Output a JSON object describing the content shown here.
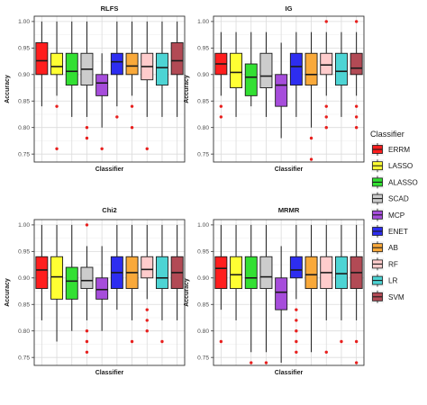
{
  "chart_data": [
    {
      "type": "box",
      "title": "RLFS",
      "xlabel": "Classifier",
      "ylabel": "Accuracy",
      "ylim": [
        0.735,
        1.01
      ],
      "yticks": [
        "0.75",
        "0.80",
        "0.85",
        "0.90",
        "0.95",
        "1.00"
      ],
      "grid": true,
      "boxes": [
        {
          "name": "ERRM",
          "whisker_low": 0.84,
          "q1": 0.9,
          "median": 0.926,
          "q3": 0.96,
          "whisker_high": 1.0,
          "outliers": []
        },
        {
          "name": "LASSO",
          "whisker_low": 0.86,
          "q1": 0.9,
          "median": 0.915,
          "q3": 0.94,
          "whisker_high": 1.0,
          "outliers": [
            0.84,
            0.76
          ]
        },
        {
          "name": "ALASSO",
          "whisker_low": 0.82,
          "q1": 0.88,
          "median": 0.906,
          "q3": 0.94,
          "whisker_high": 1.0,
          "outliers": []
        },
        {
          "name": "SCAD",
          "whisker_low": 0.82,
          "q1": 0.88,
          "median": 0.91,
          "q3": 0.94,
          "whisker_high": 1.0,
          "outliers": [
            0.78,
            0.8
          ]
        },
        {
          "name": "MCP",
          "whisker_low": 0.8,
          "q1": 0.86,
          "median": 0.884,
          "q3": 0.9,
          "whisker_high": 0.94,
          "outliers": [
            0.76
          ]
        },
        {
          "name": "ENET",
          "whisker_low": 0.84,
          "q1": 0.9,
          "median": 0.924,
          "q3": 0.94,
          "whisker_high": 1.0,
          "outliers": [
            0.82
          ]
        },
        {
          "name": "AB",
          "whisker_low": 0.86,
          "q1": 0.9,
          "median": 0.916,
          "q3": 0.94,
          "whisker_high": 1.0,
          "outliers": [
            0.84,
            0.8
          ]
        },
        {
          "name": "RF",
          "whisker_low": 0.82,
          "q1": 0.89,
          "median": 0.915,
          "q3": 0.94,
          "whisker_high": 1.0,
          "outliers": [
            0.76
          ]
        },
        {
          "name": "LR",
          "whisker_low": 0.82,
          "q1": 0.88,
          "median": 0.913,
          "q3": 0.94,
          "whisker_high": 1.0,
          "outliers": []
        },
        {
          "name": "SVM",
          "whisker_low": 0.82,
          "q1": 0.9,
          "median": 0.926,
          "q3": 0.96,
          "whisker_high": 1.0,
          "outliers": []
        }
      ]
    },
    {
      "type": "box",
      "title": "IG",
      "xlabel": "Classifier",
      "ylabel": "Accuracy",
      "ylim": [
        0.735,
        1.01
      ],
      "yticks": [
        "0.75",
        "0.80",
        "0.85",
        "0.90",
        "0.95",
        "1.00"
      ],
      "grid": true,
      "boxes": [
        {
          "name": "ERRM",
          "whisker_low": 0.86,
          "q1": 0.9,
          "median": 0.92,
          "q3": 0.94,
          "whisker_high": 0.98,
          "outliers": [
            0.84,
            0.82
          ]
        },
        {
          "name": "LASSO",
          "whisker_low": 0.82,
          "q1": 0.875,
          "median": 0.904,
          "q3": 0.94,
          "whisker_high": 0.98,
          "outliers": []
        },
        {
          "name": "ALASSO",
          "whisker_low": 0.84,
          "q1": 0.86,
          "median": 0.895,
          "q3": 0.92,
          "whisker_high": 0.98,
          "outliers": []
        },
        {
          "name": "SCAD",
          "whisker_low": 0.82,
          "q1": 0.875,
          "median": 0.897,
          "q3": 0.94,
          "whisker_high": 0.98,
          "outliers": []
        },
        {
          "name": "MCP",
          "whisker_low": 0.78,
          "q1": 0.84,
          "median": 0.88,
          "q3": 0.9,
          "whisker_high": 0.96,
          "outliers": []
        },
        {
          "name": "ENET",
          "whisker_low": 0.82,
          "q1": 0.88,
          "median": 0.915,
          "q3": 0.94,
          "whisker_high": 0.98,
          "outliers": []
        },
        {
          "name": "AB",
          "whisker_low": 0.8,
          "q1": 0.88,
          "median": 0.9,
          "q3": 0.94,
          "whisker_high": 0.98,
          "outliers": [
            0.78,
            0.74
          ]
        },
        {
          "name": "RF",
          "whisker_low": 0.86,
          "q1": 0.9,
          "median": 0.918,
          "q3": 0.94,
          "whisker_high": 0.98,
          "outliers": [
            1.0,
            0.84,
            0.82,
            0.8
          ]
        },
        {
          "name": "LR",
          "whisker_low": 0.82,
          "q1": 0.88,
          "median": 0.906,
          "q3": 0.94,
          "whisker_high": 0.98,
          "outliers": []
        },
        {
          "name": "SVM",
          "whisker_low": 0.86,
          "q1": 0.9,
          "median": 0.912,
          "q3": 0.94,
          "whisker_high": 0.98,
          "outliers": [
            1.0,
            0.84,
            0.82,
            0.8
          ]
        }
      ]
    },
    {
      "type": "box",
      "title": "Chi2",
      "xlabel": "Classifier",
      "ylabel": "Accuracy",
      "ylim": [
        0.735,
        1.01
      ],
      "yticks": [
        "0.75",
        "0.80",
        "0.85",
        "0.90",
        "0.95",
        "1.00"
      ],
      "grid": true,
      "boxes": [
        {
          "name": "ERRM",
          "whisker_low": 0.82,
          "q1": 0.88,
          "median": 0.915,
          "q3": 0.94,
          "whisker_high": 1.0,
          "outliers": []
        },
        {
          "name": "LASSO",
          "whisker_low": 0.78,
          "q1": 0.86,
          "median": 0.902,
          "q3": 0.94,
          "whisker_high": 1.0,
          "outliers": []
        },
        {
          "name": "ALASSO",
          "whisker_low": 0.8,
          "q1": 0.86,
          "median": 0.894,
          "q3": 0.92,
          "whisker_high": 1.0,
          "outliers": []
        },
        {
          "name": "SCAD",
          "whisker_low": 0.82,
          "q1": 0.88,
          "median": 0.895,
          "q3": 0.92,
          "whisker_high": 0.96,
          "outliers": [
            1.0,
            0.8,
            0.78,
            0.76
          ]
        },
        {
          "name": "MCP",
          "whisker_low": 0.8,
          "q1": 0.86,
          "median": 0.878,
          "q3": 0.9,
          "whisker_high": 0.96,
          "outliers": []
        },
        {
          "name": "ENET",
          "whisker_low": 0.84,
          "q1": 0.88,
          "median": 0.91,
          "q3": 0.94,
          "whisker_high": 1.0,
          "outliers": []
        },
        {
          "name": "AB",
          "whisker_low": 0.82,
          "q1": 0.88,
          "median": 0.91,
          "q3": 0.94,
          "whisker_high": 1.0,
          "outliers": [
            0.78
          ]
        },
        {
          "name": "RF",
          "whisker_low": 0.86,
          "q1": 0.9,
          "median": 0.916,
          "q3": 0.94,
          "whisker_high": 1.0,
          "outliers": [
            0.84,
            0.82,
            0.8
          ]
        },
        {
          "name": "LR",
          "whisker_low": 0.82,
          "q1": 0.88,
          "median": 0.9,
          "q3": 0.94,
          "whisker_high": 1.0,
          "outliers": [
            0.78
          ]
        },
        {
          "name": "SVM",
          "whisker_low": 0.82,
          "q1": 0.88,
          "median": 0.91,
          "q3": 0.94,
          "whisker_high": 1.0,
          "outliers": []
        }
      ]
    },
    {
      "type": "box",
      "title": "MRMR",
      "xlabel": "Classifier",
      "ylabel": "Accuracy",
      "ylim": [
        0.735,
        1.01
      ],
      "yticks": [
        "0.75",
        "0.80",
        "0.85",
        "0.90",
        "0.95",
        "1.00"
      ],
      "grid": true,
      "boxes": [
        {
          "name": "ERRM",
          "whisker_low": 0.84,
          "q1": 0.88,
          "median": 0.918,
          "q3": 0.94,
          "whisker_high": 1.0,
          "outliers": [
            0.78
          ]
        },
        {
          "name": "LASSO",
          "whisker_low": 0.82,
          "q1": 0.88,
          "median": 0.906,
          "q3": 0.94,
          "whisker_high": 1.0,
          "outliers": []
        },
        {
          "name": "ALASSO",
          "whisker_low": 0.76,
          "q1": 0.88,
          "median": 0.9,
          "q3": 0.94,
          "whisker_high": 1.0,
          "outliers": [
            0.74
          ]
        },
        {
          "name": "SCAD",
          "whisker_low": 0.76,
          "q1": 0.88,
          "median": 0.902,
          "q3": 0.94,
          "whisker_high": 1.0,
          "outliers": [
            0.74
          ]
        },
        {
          "name": "MCP",
          "whisker_low": 0.74,
          "q1": 0.84,
          "median": 0.873,
          "q3": 0.9,
          "whisker_high": 0.96,
          "outliers": []
        },
        {
          "name": "ENET",
          "whisker_low": 0.86,
          "q1": 0.9,
          "median": 0.915,
          "q3": 0.94,
          "whisker_high": 1.0,
          "outliers": [
            0.84,
            0.82,
            0.8,
            0.78,
            0.76
          ]
        },
        {
          "name": "AB",
          "whisker_low": 0.76,
          "q1": 0.88,
          "median": 0.906,
          "q3": 0.94,
          "whisker_high": 1.0,
          "outliers": []
        },
        {
          "name": "RF",
          "whisker_low": 0.82,
          "q1": 0.88,
          "median": 0.91,
          "q3": 0.94,
          "whisker_high": 1.0,
          "outliers": [
            0.76
          ]
        },
        {
          "name": "LR",
          "whisker_low": 0.82,
          "q1": 0.88,
          "median": 0.908,
          "q3": 0.94,
          "whisker_high": 1.0,
          "outliers": [
            0.78
          ]
        },
        {
          "name": "SVM",
          "whisker_low": 0.82,
          "q1": 0.88,
          "median": 0.91,
          "q3": 0.94,
          "whisker_high": 1.0,
          "outliers": [
            0.78,
            0.74
          ]
        }
      ]
    }
  ],
  "legend": {
    "title": "Classifier",
    "items": [
      {
        "name": "ERRM",
        "color": "#ff1e1e"
      },
      {
        "name": "LASSO",
        "color": "#ffff33"
      },
      {
        "name": "ALASSO",
        "color": "#33e033"
      },
      {
        "name": "SCAD",
        "color": "#cccccc"
      },
      {
        "name": "MCP",
        "color": "#a64ddb"
      },
      {
        "name": "ENET",
        "color": "#2d2df0"
      },
      {
        "name": "AB",
        "color": "#f9a93a"
      },
      {
        "name": "RF",
        "color": "#ffcccc"
      },
      {
        "name": "LR",
        "color": "#4dd4d4"
      },
      {
        "name": "SVM",
        "color": "#b24a55"
      }
    ]
  },
  "outlier_color": "#e8201e"
}
